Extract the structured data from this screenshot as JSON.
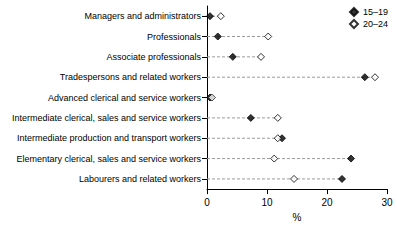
{
  "chart_data": {
    "type": "scatter",
    "orientation": "horizontal",
    "categories": [
      "Managers and administrators",
      "Professionals",
      "Associate professionals",
      "Tradespersons and related workers",
      "Advanced clerical and service workers",
      "Intermediate clerical, sales and service workers",
      "Intermediate production and transport workers",
      "Elementary clerical, sales and service workers",
      "Labourers and related workers"
    ],
    "series": [
      {
        "name": "15–19",
        "color": "#000000",
        "marker": "diamond",
        "values": [
          0.5,
          1.8,
          4.3,
          26.3,
          0.5,
          7.3,
          12.5,
          24.0,
          22.5
        ]
      },
      {
        "name": "20–24",
        "color": "#000000",
        "marker": "open_diamond",
        "values": [
          2.3,
          10.2,
          9.0,
          28.0,
          0.8,
          11.8,
          11.8,
          11.2,
          14.5
        ]
      }
    ],
    "x_label": "%",
    "xlim": [
      0,
      30
    ],
    "xticks": [
      0,
      10,
      20,
      30
    ],
    "legend": "top-right",
    "grid": false
  }
}
